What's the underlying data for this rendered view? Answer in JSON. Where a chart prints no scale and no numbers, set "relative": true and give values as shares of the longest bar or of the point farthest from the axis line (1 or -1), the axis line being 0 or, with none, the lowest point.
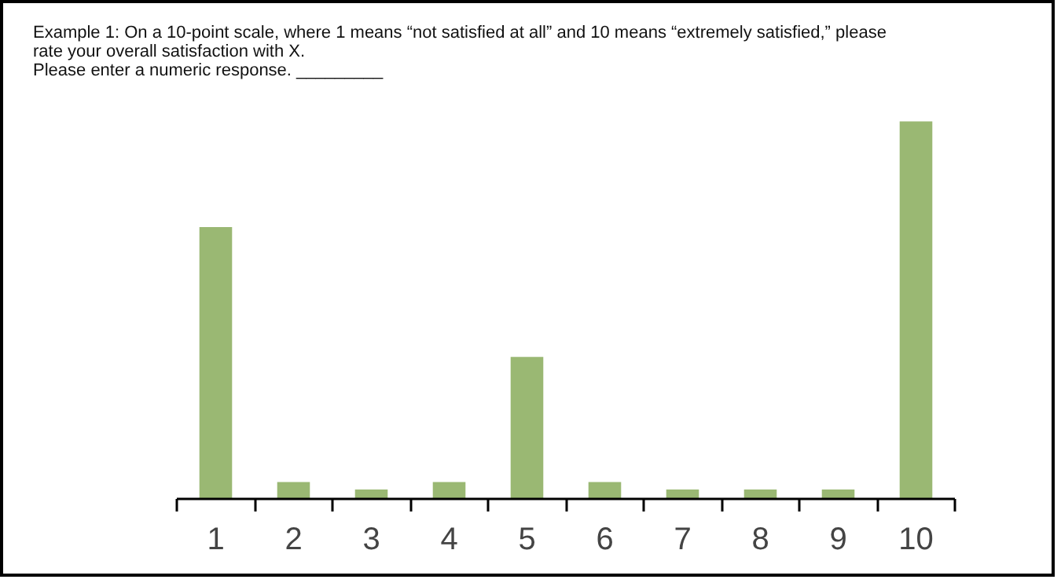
{
  "chart_data": {
    "type": "bar",
    "relative": true,
    "title": "Example 1: On a 10-point scale, where 1 means “not satisfied at all” and 10 means “extremely satisfied,” please rate your overall satisfaction with X.",
    "subtitle": "Please enter a numeric response. _________",
    "categories": [
      "1",
      "2",
      "3",
      "4",
      "5",
      "6",
      "7",
      "8",
      "9",
      "10"
    ],
    "values": [
      0.72,
      0.045,
      0.025,
      0.045,
      0.376,
      0.045,
      0.025,
      0.025,
      0.025,
      1
    ],
    "color": "#9ab873",
    "grid": false
  }
}
